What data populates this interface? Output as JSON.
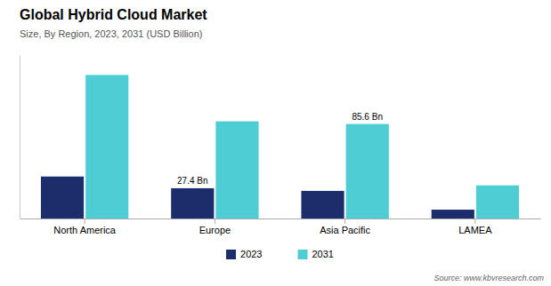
{
  "chart_data": {
    "type": "bar",
    "title": "Global Hybrid Cloud Market",
    "subtitle": "Size, By Region, 2023, 2031 (USD Billion)",
    "source": "Source: www.kbvresearch.com",
    "categories": [
      "North America",
      "Europe",
      "Asia Pacific",
      "LAMEA"
    ],
    "series": [
      {
        "name": "2023",
        "color": "#1b2d6b",
        "values": [
          38,
          27.4,
          25,
          8
        ],
        "value_labels": [
          null,
          "27.4 Bn",
          null,
          null
        ]
      },
      {
        "name": "2031",
        "color": "#4ecdd5",
        "values": [
          130,
          88,
          85.6,
          30
        ],
        "value_labels": [
          null,
          null,
          "85.6 Bn",
          null
        ]
      }
    ],
    "ylim": [
      0,
      148
    ],
    "tick_labels": "x",
    "grid": false,
    "legend": "bottom"
  }
}
